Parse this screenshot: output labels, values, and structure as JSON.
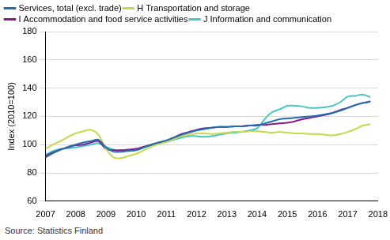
{
  "chart_data": {
    "type": "line",
    "x": [
      2007,
      2007.25,
      2007.5,
      2007.75,
      2008,
      2008.25,
      2008.5,
      2008.75,
      2009,
      2009.25,
      2009.5,
      2009.75,
      2010,
      2010.25,
      2010.5,
      2010.75,
      2011,
      2011.25,
      2011.5,
      2011.75,
      2012,
      2012.25,
      2012.5,
      2012.75,
      2013,
      2013.25,
      2013.5,
      2013.75,
      2014,
      2014.25,
      2014.5,
      2014.75,
      2015,
      2015.25,
      2015.5,
      2015.75,
      2016,
      2016.25,
      2016.5,
      2016.75,
      2017,
      2017.25,
      2017.5,
      2017.75
    ],
    "series": [
      {
        "name": "Services, total (excl. trade)",
        "color": "#1f6fb2",
        "values": [
          91,
          94,
          96.5,
          98.5,
          100,
          101.5,
          102.5,
          103.5,
          98,
          95,
          95,
          95.5,
          96,
          98,
          100,
          101.5,
          103,
          105,
          107,
          108.5,
          110,
          111,
          112,
          112.5,
          112.5,
          113,
          113,
          113.5,
          113.5,
          115,
          116.5,
          118,
          118.5,
          119,
          119.5,
          120,
          120.5,
          121.5,
          122.5,
          124,
          126,
          128,
          129.5,
          130.5
        ]
      },
      {
        "name": "H Transportation and storage",
        "color": "#c5d94a",
        "values": [
          97,
          100,
          102.5,
          105.5,
          108,
          109.5,
          110.5,
          107,
          97,
          91,
          90.5,
          92,
          93.5,
          96,
          98.5,
          100.5,
          102,
          104,
          106,
          107,
          108,
          108,
          107.5,
          108,
          108.5,
          109,
          109,
          109.5,
          109.5,
          109,
          108.5,
          109,
          108.5,
          108,
          108,
          107.5,
          107.5,
          107,
          106.5,
          107.5,
          109,
          111,
          113.5,
          114.5
        ]
      },
      {
        "name": "I Accommodation and food service activities",
        "color": "#8b1a89",
        "values": [
          92,
          94.5,
          96.5,
          98,
          99.5,
          100,
          101.5,
          102.5,
          97,
          96,
          96,
          96.5,
          97,
          98.5,
          100,
          101.5,
          103,
          105,
          107.5,
          109,
          110.5,
          111.5,
          112,
          112.5,
          112.5,
          113,
          113,
          113.5,
          114,
          114,
          114.5,
          115,
          115.5,
          116.5,
          118,
          119,
          120,
          121,
          122.5,
          124.5,
          126,
          128,
          129.5,
          130.5
        ]
      },
      {
        "name": "J Information and communication",
        "color": "#45c7c5",
        "values": [
          93,
          95.5,
          97,
          97.5,
          98,
          99,
          100,
          101,
          98.5,
          96.5,
          96,
          96,
          96.5,
          98,
          99.5,
          101,
          102,
          103.5,
          105,
          106,
          106,
          105.5,
          106,
          107,
          108,
          108.5,
          109,
          110,
          111.5,
          118,
          123,
          125,
          127.5,
          127.5,
          127,
          126,
          126,
          126.5,
          127.5,
          130,
          134,
          134.5,
          135.5,
          133.5
        ]
      }
    ],
    "y_label": "Index (2010=100)",
    "source": "Source: Statistics Finland",
    "xlim": [
      2007,
      2018
    ],
    "xticks": [
      2007,
      2008,
      2009,
      2010,
      2011,
      2012,
      2013,
      2014,
      2015,
      2016,
      2017,
      2018
    ],
    "ylim": [
      60,
      180
    ],
    "yticks": [
      60,
      80,
      100,
      120,
      140,
      160,
      180
    ],
    "grid": true,
    "legend": "top-left"
  }
}
